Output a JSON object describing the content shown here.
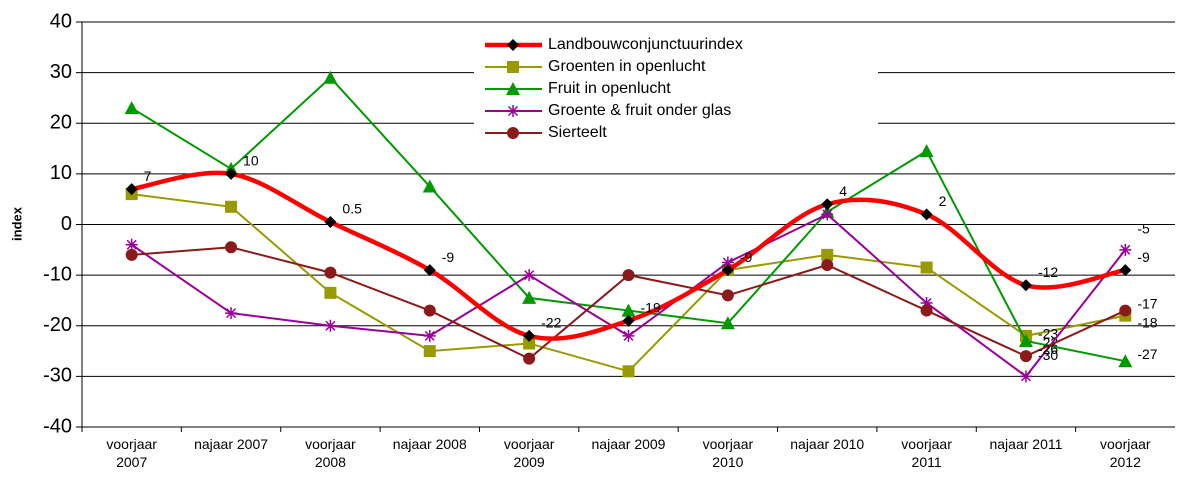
{
  "chart_data": {
    "type": "line",
    "ylabel": "index",
    "categories": [
      "voorjaar\n2007",
      "najaar 2007",
      "voorjaar\n2008",
      "najaar 2008",
      "voorjaar\n2009",
      "najaar 2009",
      "voorjaar\n2010",
      "najaar 2010",
      "voorjaar\n2011",
      "najaar 2011",
      "voorjaar\n2012"
    ],
    "ylim": [
      -40,
      40
    ],
    "yticks": [
      -40,
      -30,
      -20,
      -10,
      0,
      10,
      20,
      30,
      40
    ],
    "grid": true,
    "series": [
      {
        "name": "Landbouwconjunctuurindex",
        "color": "#ff0000",
        "marker_color": "#000000",
        "marker": "diamond",
        "smooth": true,
        "values": [
          7,
          10,
          0.5,
          -9,
          -22,
          -19,
          -9,
          4,
          2,
          -12,
          -9
        ],
        "value_labels": [
          "7",
          "10",
          "0.5",
          "-9",
          "-22",
          "-19",
          "-9",
          "4",
          "2",
          "-12",
          "-9"
        ]
      },
      {
        "name": "Groenten in openlucht",
        "color": "#999900",
        "marker_color": "#999900",
        "marker": "square",
        "values": [
          6,
          3.5,
          -13.5,
          -25,
          -23.5,
          -29,
          -9,
          -6,
          -8.5,
          -22,
          -18
        ],
        "value_labels": [
          null,
          null,
          null,
          null,
          null,
          null,
          null,
          null,
          null,
          "-22",
          "-18"
        ]
      },
      {
        "name": "Fruit in openlucht",
        "color": "#009900",
        "marker_color": "#009900",
        "marker": "triangle",
        "values": [
          23,
          11,
          29,
          7.5,
          -14.5,
          -17,
          -19.5,
          2.5,
          14.5,
          -23,
          -27
        ],
        "value_labels": [
          null,
          null,
          null,
          null,
          null,
          null,
          null,
          null,
          null,
          "-23",
          "-27"
        ]
      },
      {
        "name": "Groente & fruit onder glas",
        "color": "#990099",
        "marker_color": "#990099",
        "marker": "star",
        "values": [
          -4,
          -17.5,
          -20,
          -22,
          -10,
          -22,
          -7.5,
          2,
          -15.5,
          -30,
          -5
        ],
        "value_labels": [
          null,
          null,
          null,
          null,
          null,
          null,
          null,
          null,
          null,
          "-30",
          "-5"
        ]
      },
      {
        "name": "Sierteelt",
        "color": "#8b1a1a",
        "marker_color": "#8b1a1a",
        "marker": "circle",
        "values": [
          -6,
          -4.5,
          -9.5,
          -17,
          -26.5,
          -10,
          -14,
          -8,
          -17,
          -26,
          -17
        ],
        "value_labels": [
          null,
          null,
          null,
          null,
          null,
          null,
          null,
          null,
          null,
          "-26",
          "-17"
        ]
      }
    ]
  }
}
